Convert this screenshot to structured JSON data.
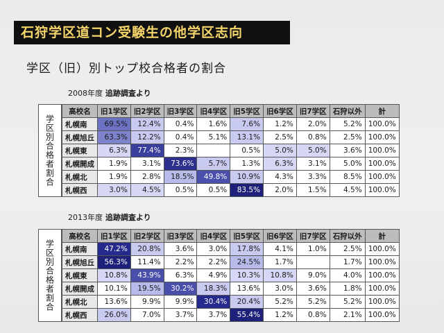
{
  "title": "石狩学区道コン受験生の他学区志向",
  "subtitle": "学区（旧）別トップ校合格者の割合",
  "side_label": "学区別合格者割合",
  "headers": [
    "高校名",
    "旧1学区",
    "旧2学区",
    "旧3学区",
    "旧4学区",
    "旧5学区",
    "旧6学区",
    "旧7学区",
    "石狩以外",
    "計"
  ],
  "table_2008": {
    "year_label": "2008年度",
    "source_label": "追跡調査より",
    "rows": [
      {
        "name": "札幌南",
        "values": [
          "69.5%",
          "12.4%",
          "0.4%",
          "1.6%",
          "7.6%",
          "1.2%",
          "2.0%",
          "5.2%",
          "100.0%"
        ]
      },
      {
        "name": "札幌旭丘",
        "values": [
          "63.3%",
          "12.2%",
          "0.4%",
          "5.1%",
          "13.1%",
          "2.5%",
          "0.8%",
          "2.5%",
          "100.0%"
        ]
      },
      {
        "name": "札幌東",
        "values": [
          "6.3%",
          "77.4%",
          "2.3%",
          "",
          "0.5%",
          "5.0%",
          "5.0%",
          "3.6%",
          "100.0%"
        ]
      },
      {
        "name": "札幌開成",
        "values": [
          "1.9%",
          "3.1%",
          "73.6%",
          "5.7%",
          "1.3%",
          "6.3%",
          "3.1%",
          "5.0%",
          "100.0%"
        ]
      },
      {
        "name": "札幌北",
        "values": [
          "1.9%",
          "2.8%",
          "18.5%",
          "49.8%",
          "10.9%",
          "4.3%",
          "3.3%",
          "8.5%",
          "100.0%"
        ]
      },
      {
        "name": "札幌西",
        "values": [
          "3.0%",
          "4.5%",
          "0.5%",
          "0.5%",
          "83.5%",
          "2.0%",
          "1.5%",
          "4.5%",
          "100.0%"
        ]
      }
    ],
    "shading": [
      [
        "#6c72c2",
        "#c9caf0",
        "#fff",
        "#fff",
        "#c9caf0",
        "#fff",
        "#fff",
        "#fff",
        "#fff"
      ],
      [
        "#7e84cc",
        "#c9caf0",
        "#fff",
        "#fff",
        "#c9caf0",
        "#fff",
        "#fff",
        "#fff",
        "#fff"
      ],
      [
        "#d6d7f4",
        "#3a3f9e",
        "#fff",
        "#fff",
        "#fff",
        "#d6d7f4",
        "#d6d7f4",
        "#fff",
        "#fff"
      ],
      [
        "#fff",
        "#fff",
        "#2c2f8c",
        "#c9caf0",
        "#fff",
        "#d6d7f4",
        "#fff",
        "#fff",
        "#fff"
      ],
      [
        "#fff",
        "#fff",
        "#b8baea",
        "#4a4fac",
        "#c9caf0",
        "#fff",
        "#fff",
        "#fff",
        "#fff"
      ],
      [
        "#d6d7f4",
        "#d6d7f4",
        "#fff",
        "#fff",
        "#1e2179",
        "#fff",
        "#fff",
        "#fff",
        "#fff"
      ]
    ]
  },
  "table_2013": {
    "year_label": "2013年度",
    "source_label": "追跡調査より",
    "rows": [
      {
        "name": "札幌南",
        "values": [
          "47.2%",
          "20.8%",
          "3.6%",
          "3.0%",
          "17.8%",
          "4.1%",
          "1.0%",
          "2.5%",
          "100.0%"
        ]
      },
      {
        "name": "札幌旭丘",
        "values": [
          "56.3%",
          "11.4%",
          "2.2%",
          "2.2%",
          "24.5%",
          "1.7%",
          "",
          "1.7%",
          "100.0%"
        ]
      },
      {
        "name": "札幌東",
        "values": [
          "10.8%",
          "43.9%",
          "6.3%",
          "4.9%",
          "10.3%",
          "10.8%",
          "9.0%",
          "4.0%",
          "100.0%"
        ]
      },
      {
        "name": "札幌開成",
        "values": [
          "10.1%",
          "19.5%",
          "30.2%",
          "18.3%",
          "13.6%",
          "3.0%",
          "3.6%",
          "1.8%",
          "100.0%"
        ]
      },
      {
        "name": "札幌北",
        "values": [
          "13.6%",
          "9.9%",
          "9.9%",
          "30.4%",
          "20.4%",
          "5.2%",
          "5.2%",
          "5.2%",
          "100.0%"
        ]
      },
      {
        "name": "札幌西",
        "values": [
          "26.0%",
          "7.0%",
          "3.7%",
          "3.7%",
          "55.4%",
          "1.2%",
          "0.8%",
          "2.1%",
          "100.0%"
        ]
      }
    ],
    "shading": [
      [
        "#262a8c",
        "#c9caf0",
        "#fff",
        "#fff",
        "#c9caf0",
        "#fff",
        "#fff",
        "#fff",
        "#fff"
      ],
      [
        "#1e2179",
        "#fff",
        "#fff",
        "#fff",
        "#b8baea",
        "#fff",
        "#fff",
        "#fff",
        "#fff"
      ],
      [
        "#d6d7f4",
        "#4a4fac",
        "#fff",
        "#fff",
        "#d6d7f4",
        "#d6d7f4",
        "#fff",
        "#fff",
        "#fff"
      ],
      [
        "#fff",
        "#b8baea",
        "#4a4fac",
        "#c9caf0",
        "#fff",
        "#fff",
        "#fff",
        "#fff",
        "#fff"
      ],
      [
        "#fff",
        "#fff",
        "#fff",
        "#262a8c",
        "#c9caf0",
        "#fff",
        "#fff",
        "#fff",
        "#fff"
      ],
      [
        "#c9caf0",
        "#fff",
        "#fff",
        "#fff",
        "#1e2179",
        "#fff",
        "#fff",
        "#fff",
        "#fff"
      ]
    ]
  }
}
